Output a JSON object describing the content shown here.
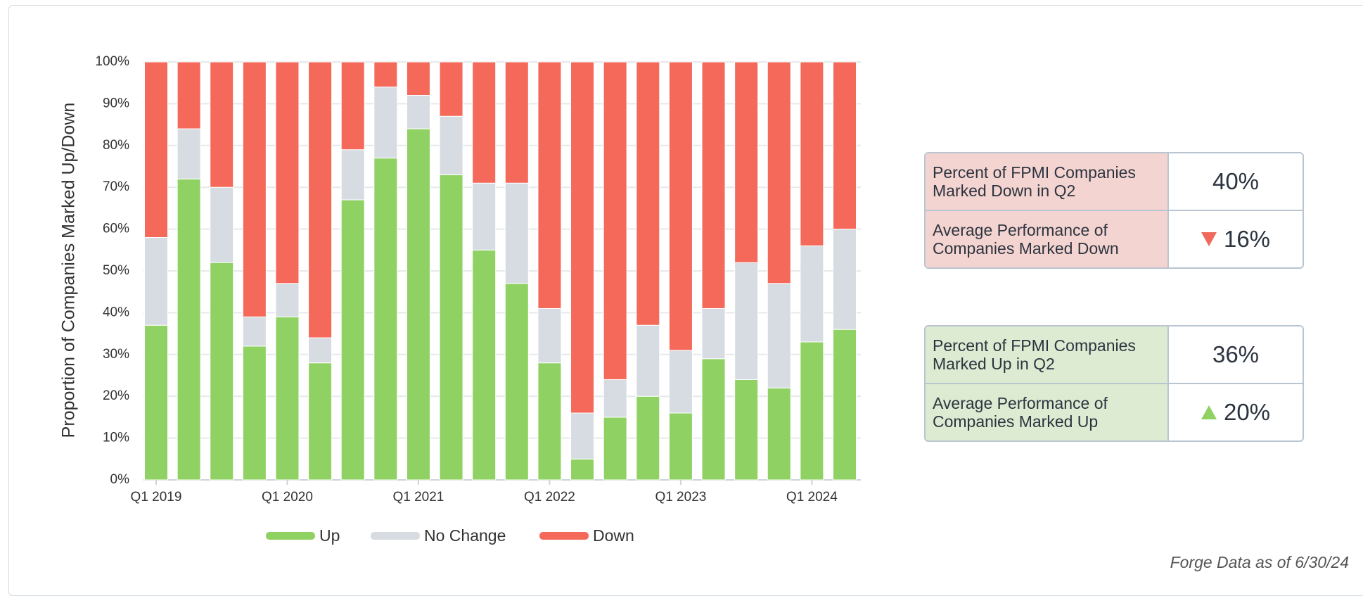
{
  "chart_data": {
    "type": "stacked_bar",
    "y_label": "Proportion of Companies Marked Up/Down",
    "categories": [
      "Q1 2019",
      null,
      null,
      null,
      "Q1 2020",
      null,
      null,
      null,
      "Q1 2021",
      null,
      null,
      null,
      "Q1 2022",
      null,
      null,
      null,
      "Q1 2023",
      null,
      null,
      null,
      "Q1 2024",
      null
    ],
    "series": [
      {
        "name": "Up",
        "color": "#8fd163",
        "values": [
          37,
          72,
          52,
          32,
          39,
          28,
          67,
          77,
          84,
          73,
          55,
          47,
          28,
          5,
          15,
          20,
          16,
          29,
          24,
          22,
          33,
          36
        ]
      },
      {
        "name": "No Change",
        "color": "#d6dce2",
        "values": [
          21,
          12,
          18,
          7,
          8,
          6,
          12,
          17,
          8,
          14,
          16,
          24,
          13,
          11,
          9,
          17,
          15,
          12,
          28,
          25,
          23,
          24
        ]
      },
      {
        "name": "Down",
        "color": "#f4695a",
        "values": [
          42,
          16,
          30,
          61,
          53,
          66,
          21,
          6,
          8,
          13,
          29,
          29,
          59,
          84,
          76,
          63,
          69,
          59,
          48,
          53,
          44,
          40
        ]
      }
    ],
    "ylim": [
      0,
      100
    ],
    "yticks": [
      {
        "value": 0,
        "label": "0%"
      },
      {
        "value": 10,
        "label": "10%"
      },
      {
        "value": 20,
        "label": "20%"
      },
      {
        "value": 30,
        "label": "30%"
      },
      {
        "value": 40,
        "label": "40%"
      },
      {
        "value": 50,
        "label": "50%"
      },
      {
        "value": 60,
        "label": "60%"
      },
      {
        "value": 70,
        "label": "70%"
      },
      {
        "value": 80,
        "label": "80%"
      },
      {
        "value": 90,
        "label": "90%"
      },
      {
        "value": 100,
        "label": "100%"
      }
    ],
    "grid": true,
    "legend": "bottom"
  },
  "kpi_panels": [
    {
      "rows": [
        {
          "label": "Percent of FPMI Companies Marked Down in Q2",
          "value": "40%"
        },
        {
          "label": "Average Performance of Companies Marked Down",
          "value": "16%"
        }
      ]
    },
    {
      "rows": [
        {
          "label": "Percent of FPMI Companies Marked Up in Q2",
          "value": "36%"
        },
        {
          "label": "Average Performance of Companies Marked Up",
          "value": "20%"
        }
      ]
    }
  ],
  "footnote": "Forge Data as of 6/30/24"
}
